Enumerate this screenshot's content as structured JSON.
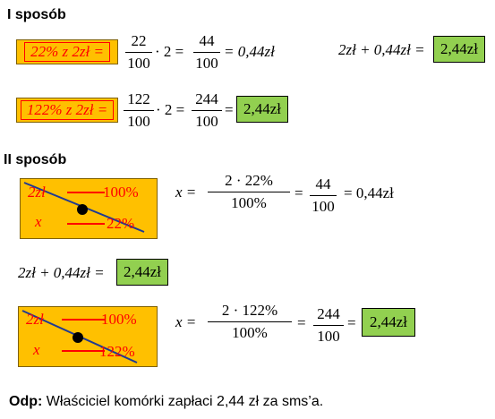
{
  "method1": {
    "heading": "I sposób",
    "row1": {
      "box_text": "22% z 2zł =",
      "frac1_num": "22",
      "frac1_den": "100",
      "times_two": "· 2 =",
      "frac2_num": "44",
      "frac2_den": "100",
      "result": "= 0,44zł",
      "sum_expr": "2zł + 0,44zł =",
      "sum_result": "2,44zł"
    },
    "row2": {
      "box_text": "122% z 2zł =",
      "frac1_num": "122",
      "frac1_den": "100",
      "times_two": "· 2 =",
      "frac2_num": "244",
      "frac2_den": "100",
      "eq": "=",
      "result": "2,44zł"
    }
  },
  "method2": {
    "heading": "II sposób",
    "prop1": {
      "a": "2zł",
      "b": "100%",
      "c": "x",
      "d": "22%",
      "x_eq": "x =",
      "num": "2 · 22%",
      "den": "100%",
      "eq1": "=",
      "num2": "44",
      "den2": "100",
      "result": "= 0,44zł"
    },
    "sum_expr": "2zł + 0,44zł =",
    "sum_result": "2,44zł",
    "prop2": {
      "a": "2zł",
      "b": "100%",
      "c": "x",
      "d": "122%",
      "x_eq": "x =",
      "num": "2 · 122%",
      "den": "100%",
      "eq1": "=",
      "num2": "244",
      "den2": "100",
      "eq2": "=",
      "result": "2,44zł"
    }
  },
  "answer": {
    "label": "Odp:",
    "text": "Właściciel komórki zapłaci 2,44 zł za sms’a."
  },
  "colors": {
    "orange": "#ffc000",
    "green": "#92d050",
    "red": "#ff0000",
    "navy": "#1f3a93"
  }
}
